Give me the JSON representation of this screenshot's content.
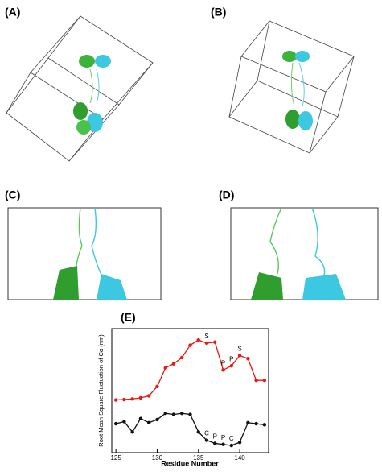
{
  "panels": {
    "labels": [
      "(A)",
      "(B)",
      "(C)",
      "(D)"
    ]
  },
  "chart_data": {
    "type": "line",
    "title": "(E)",
    "x_label": "Residue Number",
    "y_label": "Root Mean Square Fluctuation of Cα (nm)",
    "x": [
      125,
      126,
      127,
      128,
      129,
      130,
      131,
      132,
      133,
      134,
      135,
      136,
      137,
      138,
      139,
      140,
      141,
      142,
      143
    ],
    "series": [
      {
        "color": "#e8190f",
        "values": [
          0.255,
          0.257,
          0.26,
          0.265,
          0.275,
          0.32,
          0.41,
          0.43,
          0.46,
          0.52,
          0.545,
          0.53,
          0.535,
          0.4,
          0.42,
          0.47,
          0.455,
          0.35,
          0.35
        ],
        "point_labels": [
          null,
          null,
          null,
          null,
          null,
          null,
          null,
          null,
          null,
          null,
          null,
          "S",
          null,
          "P",
          "P",
          "S",
          null,
          null,
          null
        ]
      },
      {
        "color": "#111111",
        "values": [
          0.14,
          0.15,
          0.1,
          0.165,
          0.145,
          0.16,
          0.19,
          0.185,
          0.19,
          0.185,
          0.1,
          0.06,
          0.045,
          0.04,
          0.035,
          0.05,
          0.145,
          0.14,
          0.135
        ],
        "point_labels": [
          null,
          null,
          null,
          null,
          null,
          null,
          null,
          null,
          null,
          null,
          null,
          "C",
          "P",
          "P",
          "C",
          null,
          null,
          null,
          null
        ]
      }
    ],
    "xlim": [
      124.5,
      143.5
    ],
    "xticks": [
      125,
      130,
      135,
      140
    ],
    "ylim": [
      0,
      0.6
    ]
  }
}
